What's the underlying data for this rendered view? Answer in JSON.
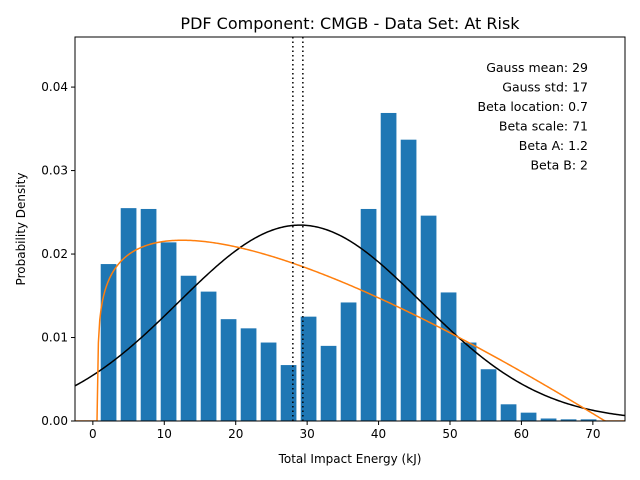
{
  "chart_data": {
    "type": "bar",
    "title": "PDF Component: CMGB - Data Set: At Risk",
    "xlabel": "Total Impact Energy (kJ)",
    "ylabel": "Probability Density",
    "xlim": [
      -2.5,
      74.5
    ],
    "ylim": [
      0,
      0.046
    ],
    "xticks": [
      0,
      10,
      20,
      30,
      40,
      50,
      60,
      70
    ],
    "xtick_labels": [
      "0",
      "10",
      "20",
      "30",
      "40",
      "50",
      "60",
      "70"
    ],
    "yticks": [
      0,
      0.01,
      0.02,
      0.03,
      0.04
    ],
    "ytick_labels": [
      "0.00",
      "0.01",
      "0.02",
      "0.03",
      "0.04"
    ],
    "grid": false,
    "bar_width": 2.2,
    "bar_color": "#1f77b4",
    "bars": {
      "x": [
        2.2,
        5.0,
        7.8,
        10.6,
        13.4,
        16.2,
        19.0,
        21.8,
        24.6,
        27.4,
        30.2,
        33.0,
        35.8,
        38.6,
        41.4,
        44.2,
        47.0,
        49.8,
        52.6,
        55.4,
        58.2,
        61.0,
        63.8,
        66.6,
        69.4
      ],
      "values": [
        0.0188,
        0.0255,
        0.0254,
        0.0214,
        0.0174,
        0.0155,
        0.0122,
        0.0111,
        0.0094,
        0.0067,
        0.0125,
        0.009,
        0.0142,
        0.0254,
        0.0369,
        0.0337,
        0.0246,
        0.0154,
        0.0094,
        0.0062,
        0.002,
        0.001,
        0.0003,
        0.0002,
        0.0002
      ]
    },
    "curves": [
      {
        "kind": "gauss",
        "color": "#000000",
        "mean": 29,
        "std": 17
      },
      {
        "kind": "beta",
        "color": "#ff7f0e",
        "location": 0.7,
        "scale": 71,
        "a": 1.2,
        "b": 2
      }
    ],
    "vlines": [
      28.0,
      29.4
    ],
    "annotations": [
      "Gauss mean: 29",
      "Gauss std: 17",
      "Beta location: 0.7",
      "Beta scale: 71",
      "Beta A: 1.2",
      "Beta B: 2"
    ]
  }
}
